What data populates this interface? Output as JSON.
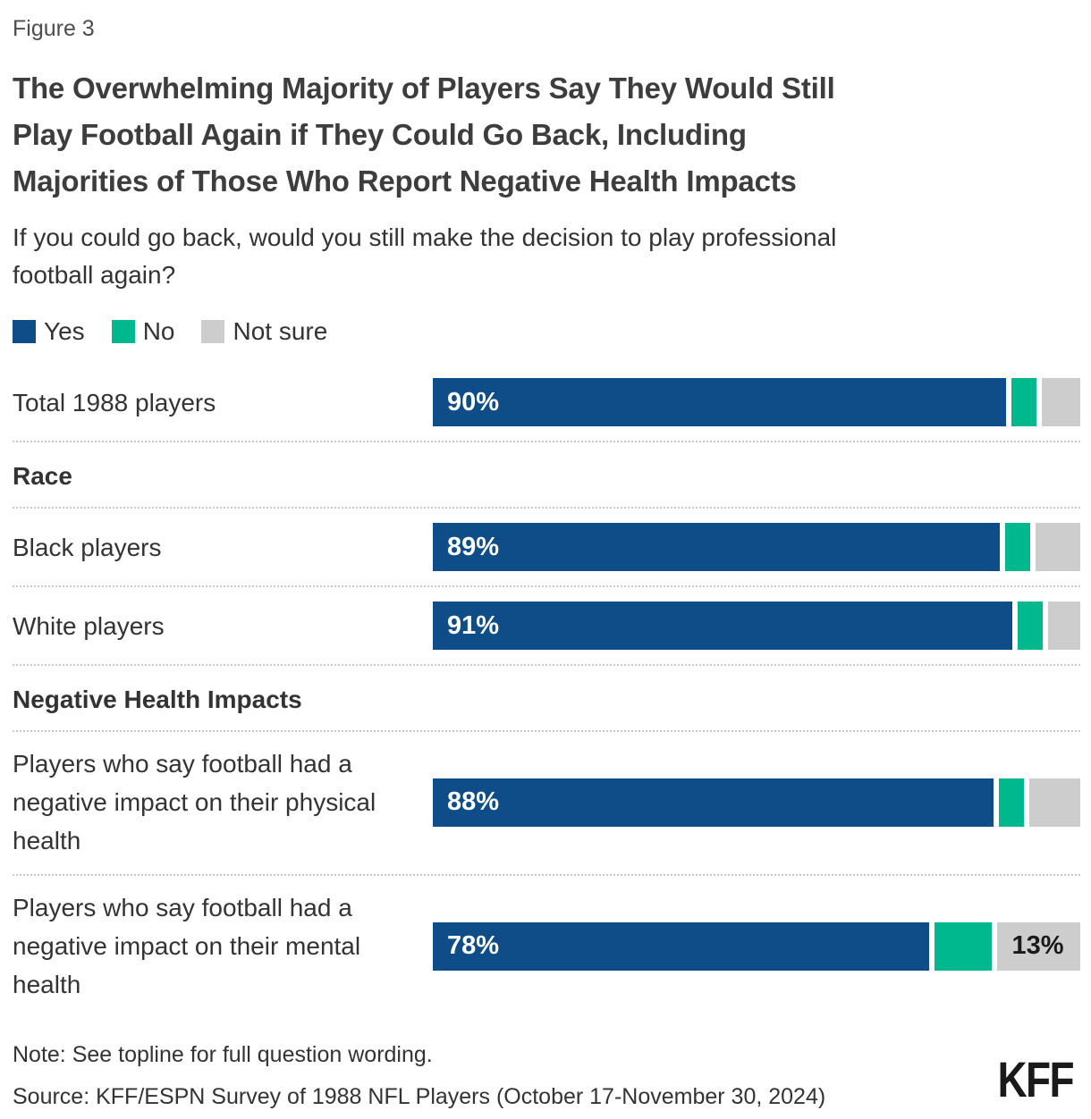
{
  "figure_label": "Figure 3",
  "title": {
    "lines": [
      "The Overwhelming Majority of Players Say They Would Still",
      "Play Football Again if They Could Go Back, Including",
      "Majorities of Those Who Report Negative Health Impacts"
    ]
  },
  "subtitle": {
    "lines": [
      "If you could go back, would you still make the decision to play professional",
      "football again?"
    ]
  },
  "chart_data": {
    "type": "bar",
    "orientation": "horizontal",
    "stacked": true,
    "unit": "percent",
    "xlim": [
      0,
      100
    ],
    "grid": false,
    "legend_position": "top",
    "title": "The Overwhelming Majority of Players Say They Would Still Play Football Again if They Could Go Back, Including Majorities of Those Who Report Negative Health Impacts",
    "series": [
      {
        "name": "Yes",
        "color": "#0e4d87"
      },
      {
        "name": "No",
        "color": "#00b88d"
      },
      {
        "name": "Not sure",
        "color": "#cdcdcd"
      }
    ],
    "groups": [
      {
        "header": null,
        "rows": [
          {
            "label": "Total 1988 players",
            "values": [
              90,
              4,
              6
            ],
            "bar_labels": [
              "90%",
              "",
              ""
            ]
          }
        ]
      },
      {
        "header": "Race",
        "rows": [
          {
            "label": "Black players",
            "values": [
              89,
              4,
              7
            ],
            "bar_labels": [
              "89%",
              "",
              ""
            ]
          },
          {
            "label": "White players",
            "values": [
              91,
              4,
              5
            ],
            "bar_labels": [
              "91%",
              "",
              ""
            ]
          }
        ]
      },
      {
        "header": "Negative Health Impacts",
        "rows": [
          {
            "label": "Players who say football had a negative impact on their physical health",
            "values": [
              88,
              4,
              8
            ],
            "bar_labels": [
              "88%",
              "",
              ""
            ]
          },
          {
            "label": "Players who say football had a negative impact on their mental health",
            "values": [
              78,
              9,
              13
            ],
            "bar_labels": [
              "78%",
              "",
              "13%"
            ]
          }
        ]
      }
    ]
  },
  "note": "Note: See topline for full question wording.",
  "source": "Source: KFF/ESPN Survey of 1988 NFL Players (October 17-November 30, 2024)",
  "logo": "KFF"
}
